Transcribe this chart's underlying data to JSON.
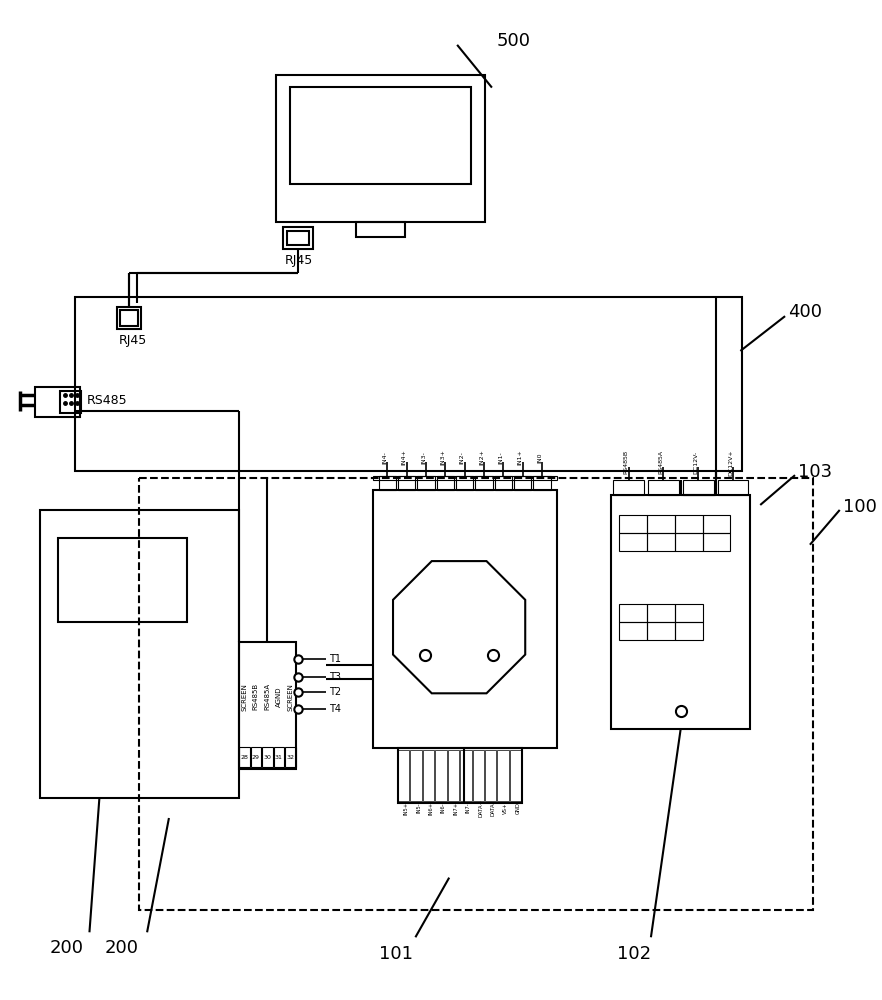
{
  "bg_color": "#ffffff",
  "lc": "#000000",
  "label_500": "500",
  "label_400": "400",
  "label_100": "100",
  "label_103": "103",
  "label_200": "200",
  "label_101": "101",
  "label_102": "102",
  "rj45_top": "RJ45",
  "rj45_bottom": "RJ45",
  "rs485_label": "RS485",
  "screen_labels": [
    "SCREEN",
    "RS485B",
    "RS485A",
    "AGND",
    "SCREEN"
  ],
  "pin_numbers": [
    "28",
    "29",
    "30",
    "31",
    "32"
  ],
  "t_labels": [
    "T1",
    "T3",
    "T2",
    "T4"
  ],
  "in_top_labels": [
    "IN4-",
    "IN4+",
    "IN3-",
    "IN3+",
    "IN2-",
    "IN2+",
    "IN1-",
    "IN1+",
    "IN0"
  ],
  "in_bot_labels": [
    "IN5+",
    "IN5-",
    "IN6+",
    "IN6-",
    "IN7+",
    "IN7-",
    "DATA+",
    "DATA-",
    "VS+",
    "GND"
  ],
  "rs485b": "RS485B",
  "rs485a": "RS485A",
  "dc12vm": "DC12V-",
  "dc12vp": "DC12V+"
}
